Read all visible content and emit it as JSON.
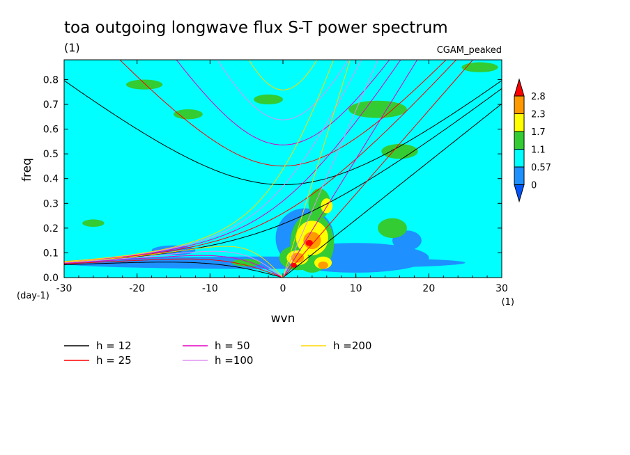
{
  "chart_data": {
    "type": "heatmap",
    "title": "toa outgoing longwave flux S-T power spectrum",
    "subtitle": "(1)",
    "annotation": "CGAM_peaked",
    "xlabel": "wvn",
    "ylabel": "freq",
    "x_unit": "(1)",
    "y_unit": "(day-1)",
    "xlim": [
      -30,
      30
    ],
    "ylim": [
      0,
      0.88
    ],
    "x_ticks": [
      -30,
      -20,
      -10,
      0,
      10,
      20,
      30
    ],
    "x_tick_labels": [
      "-30",
      "-20",
      "-10",
      "0",
      "10",
      "20",
      "30"
    ],
    "y_ticks": [
      0.0,
      0.1,
      0.2,
      0.3,
      0.4,
      0.5,
      0.6,
      0.7,
      0.8
    ],
    "y_tick_labels": [
      "0.0",
      "0.1",
      "0.2",
      "0.3",
      "0.4",
      "0.5",
      "0.6",
      "0.7",
      "0.8"
    ],
    "colorbar": {
      "levels": [
        "2.8",
        "2.3",
        "1.7",
        "1.1",
        "0.57",
        "0"
      ],
      "colors": [
        "#ff0000",
        "#ff9900",
        "#ffff00",
        "#33cc33",
        "#00ffff",
        "#1e90ff",
        "#0055ff"
      ],
      "extend": "both"
    },
    "background_color": "#00ffff",
    "blobs": [
      {
        "level": 1,
        "x": -3,
        "y": 0.06,
        "rx": 28,
        "ry": 0.025
      },
      {
        "level": 1,
        "x": 10,
        "y": 0.08,
        "rx": 10,
        "ry": 0.06
      },
      {
        "level": 1,
        "x": 3,
        "y": 0.16,
        "rx": 4,
        "ry": 0.12
      },
      {
        "level": 1,
        "x": -15,
        "y": 0.11,
        "rx": 3,
        "ry": 0.02
      },
      {
        "level": 1,
        "x": 17,
        "y": 0.15,
        "rx": 2,
        "ry": 0.04
      },
      {
        "level": 3,
        "x": 4,
        "y": 0.14,
        "rx": 3,
        "ry": 0.12
      },
      {
        "level": 3,
        "x": 2,
        "y": 0.08,
        "rx": 2.5,
        "ry": 0.05
      },
      {
        "level": 3,
        "x": 5,
        "y": 0.3,
        "rx": 1.5,
        "ry": 0.06
      },
      {
        "level": 3,
        "x": 15,
        "y": 0.2,
        "rx": 2,
        "ry": 0.04
      },
      {
        "level": 3,
        "x": -5,
        "y": 0.06,
        "rx": 2,
        "ry": 0.015
      },
      {
        "level": 3,
        "x": 13,
        "y": 0.68,
        "rx": 4,
        "ry": 0.035
      },
      {
        "level": 3,
        "x": -13,
        "y": 0.66,
        "rx": 2,
        "ry": 0.02
      },
      {
        "level": 3,
        "x": -19,
        "y": 0.78,
        "rx": 2.5,
        "ry": 0.02
      },
      {
        "level": 3,
        "x": 27,
        "y": 0.85,
        "rx": 2.5,
        "ry": 0.02
      },
      {
        "level": 3,
        "x": 16,
        "y": 0.51,
        "rx": 2.5,
        "ry": 0.03
      },
      {
        "level": 3,
        "x": -26,
        "y": 0.22,
        "rx": 1.5,
        "ry": 0.015
      },
      {
        "level": 3,
        "x": -2,
        "y": 0.72,
        "rx": 2,
        "ry": 0.02
      },
      {
        "level": 4,
        "x": 4,
        "y": 0.16,
        "rx": 2.2,
        "ry": 0.07
      },
      {
        "level": 4,
        "x": 2,
        "y": 0.08,
        "rx": 1.5,
        "ry": 0.03
      },
      {
        "level": 4,
        "x": 5.5,
        "y": 0.06,
        "rx": 1.2,
        "ry": 0.025
      },
      {
        "level": 4,
        "x": 6,
        "y": 0.29,
        "rx": 0.8,
        "ry": 0.03
      },
      {
        "level": 5,
        "x": 4,
        "y": 0.15,
        "rx": 1.2,
        "ry": 0.035
      },
      {
        "level": 5,
        "x": 2,
        "y": 0.08,
        "rx": 0.9,
        "ry": 0.02
      },
      {
        "level": 5,
        "x": 5.5,
        "y": 0.05,
        "rx": 0.7,
        "ry": 0.015
      },
      {
        "level": 6,
        "x": 3.6,
        "y": 0.14,
        "rx": 0.5,
        "ry": 0.012
      },
      {
        "level": 6,
        "x": 1.5,
        "y": 0.05,
        "rx": 0.4,
        "ry": 0.01
      }
    ],
    "dispersion_curves": [
      {
        "label": "h = 12",
        "h": 12,
        "color": "#000000"
      },
      {
        "label": "h = 25",
        "h": 25,
        "color": "#ff0000"
      },
      {
        "label": "h = 50",
        "h": 50,
        "color": "#e000c0"
      },
      {
        "label": "h =100",
        "h": 100,
        "color": "#e090f0"
      },
      {
        "label": "h =200",
        "h": 200,
        "color": "#ffd700"
      }
    ]
  }
}
